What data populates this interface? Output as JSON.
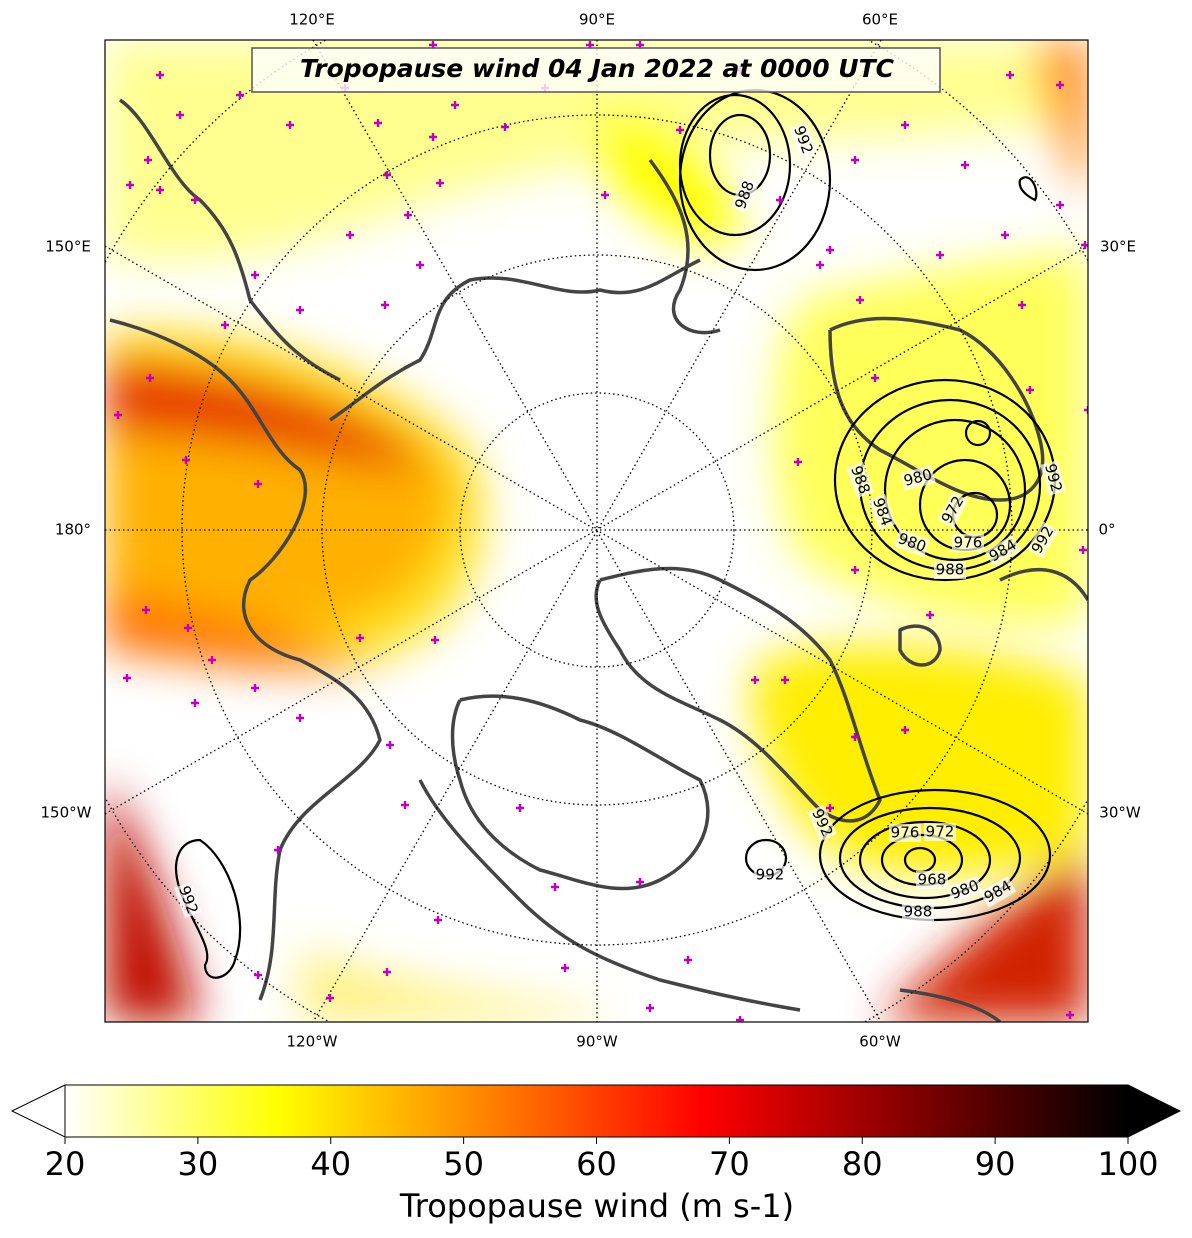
{
  "title": "Tropopause wind 04 Jan 2022 at 0000 UTC",
  "map": {
    "lon_labels_top": [
      "120°E",
      "90°E",
      "60°E"
    ],
    "lon_labels_bottom": [
      "120°W",
      "90°W",
      "60°W"
    ],
    "lon_labels_left": [
      "150°E",
      "180°",
      "150°W"
    ],
    "lon_labels_right": [
      "30°E",
      "0°",
      "30°W"
    ],
    "contour_labels": [
      992,
      988,
      988,
      984,
      980,
      980,
      972,
      976,
      984,
      988,
      992,
      992,
      992,
      976,
      972,
      968,
      980,
      984,
      988,
      992,
      992
    ]
  },
  "colorbar": {
    "label": "Tropopause wind (m s-1)",
    "range": [
      20,
      100
    ],
    "ticks": [
      20,
      30,
      40,
      50,
      60,
      70,
      80,
      90,
      100
    ],
    "colormap": [
      "#ffffff",
      "#ffff00",
      "#ff8000",
      "#ff0000",
      "#800000",
      "#000000"
    ]
  }
}
